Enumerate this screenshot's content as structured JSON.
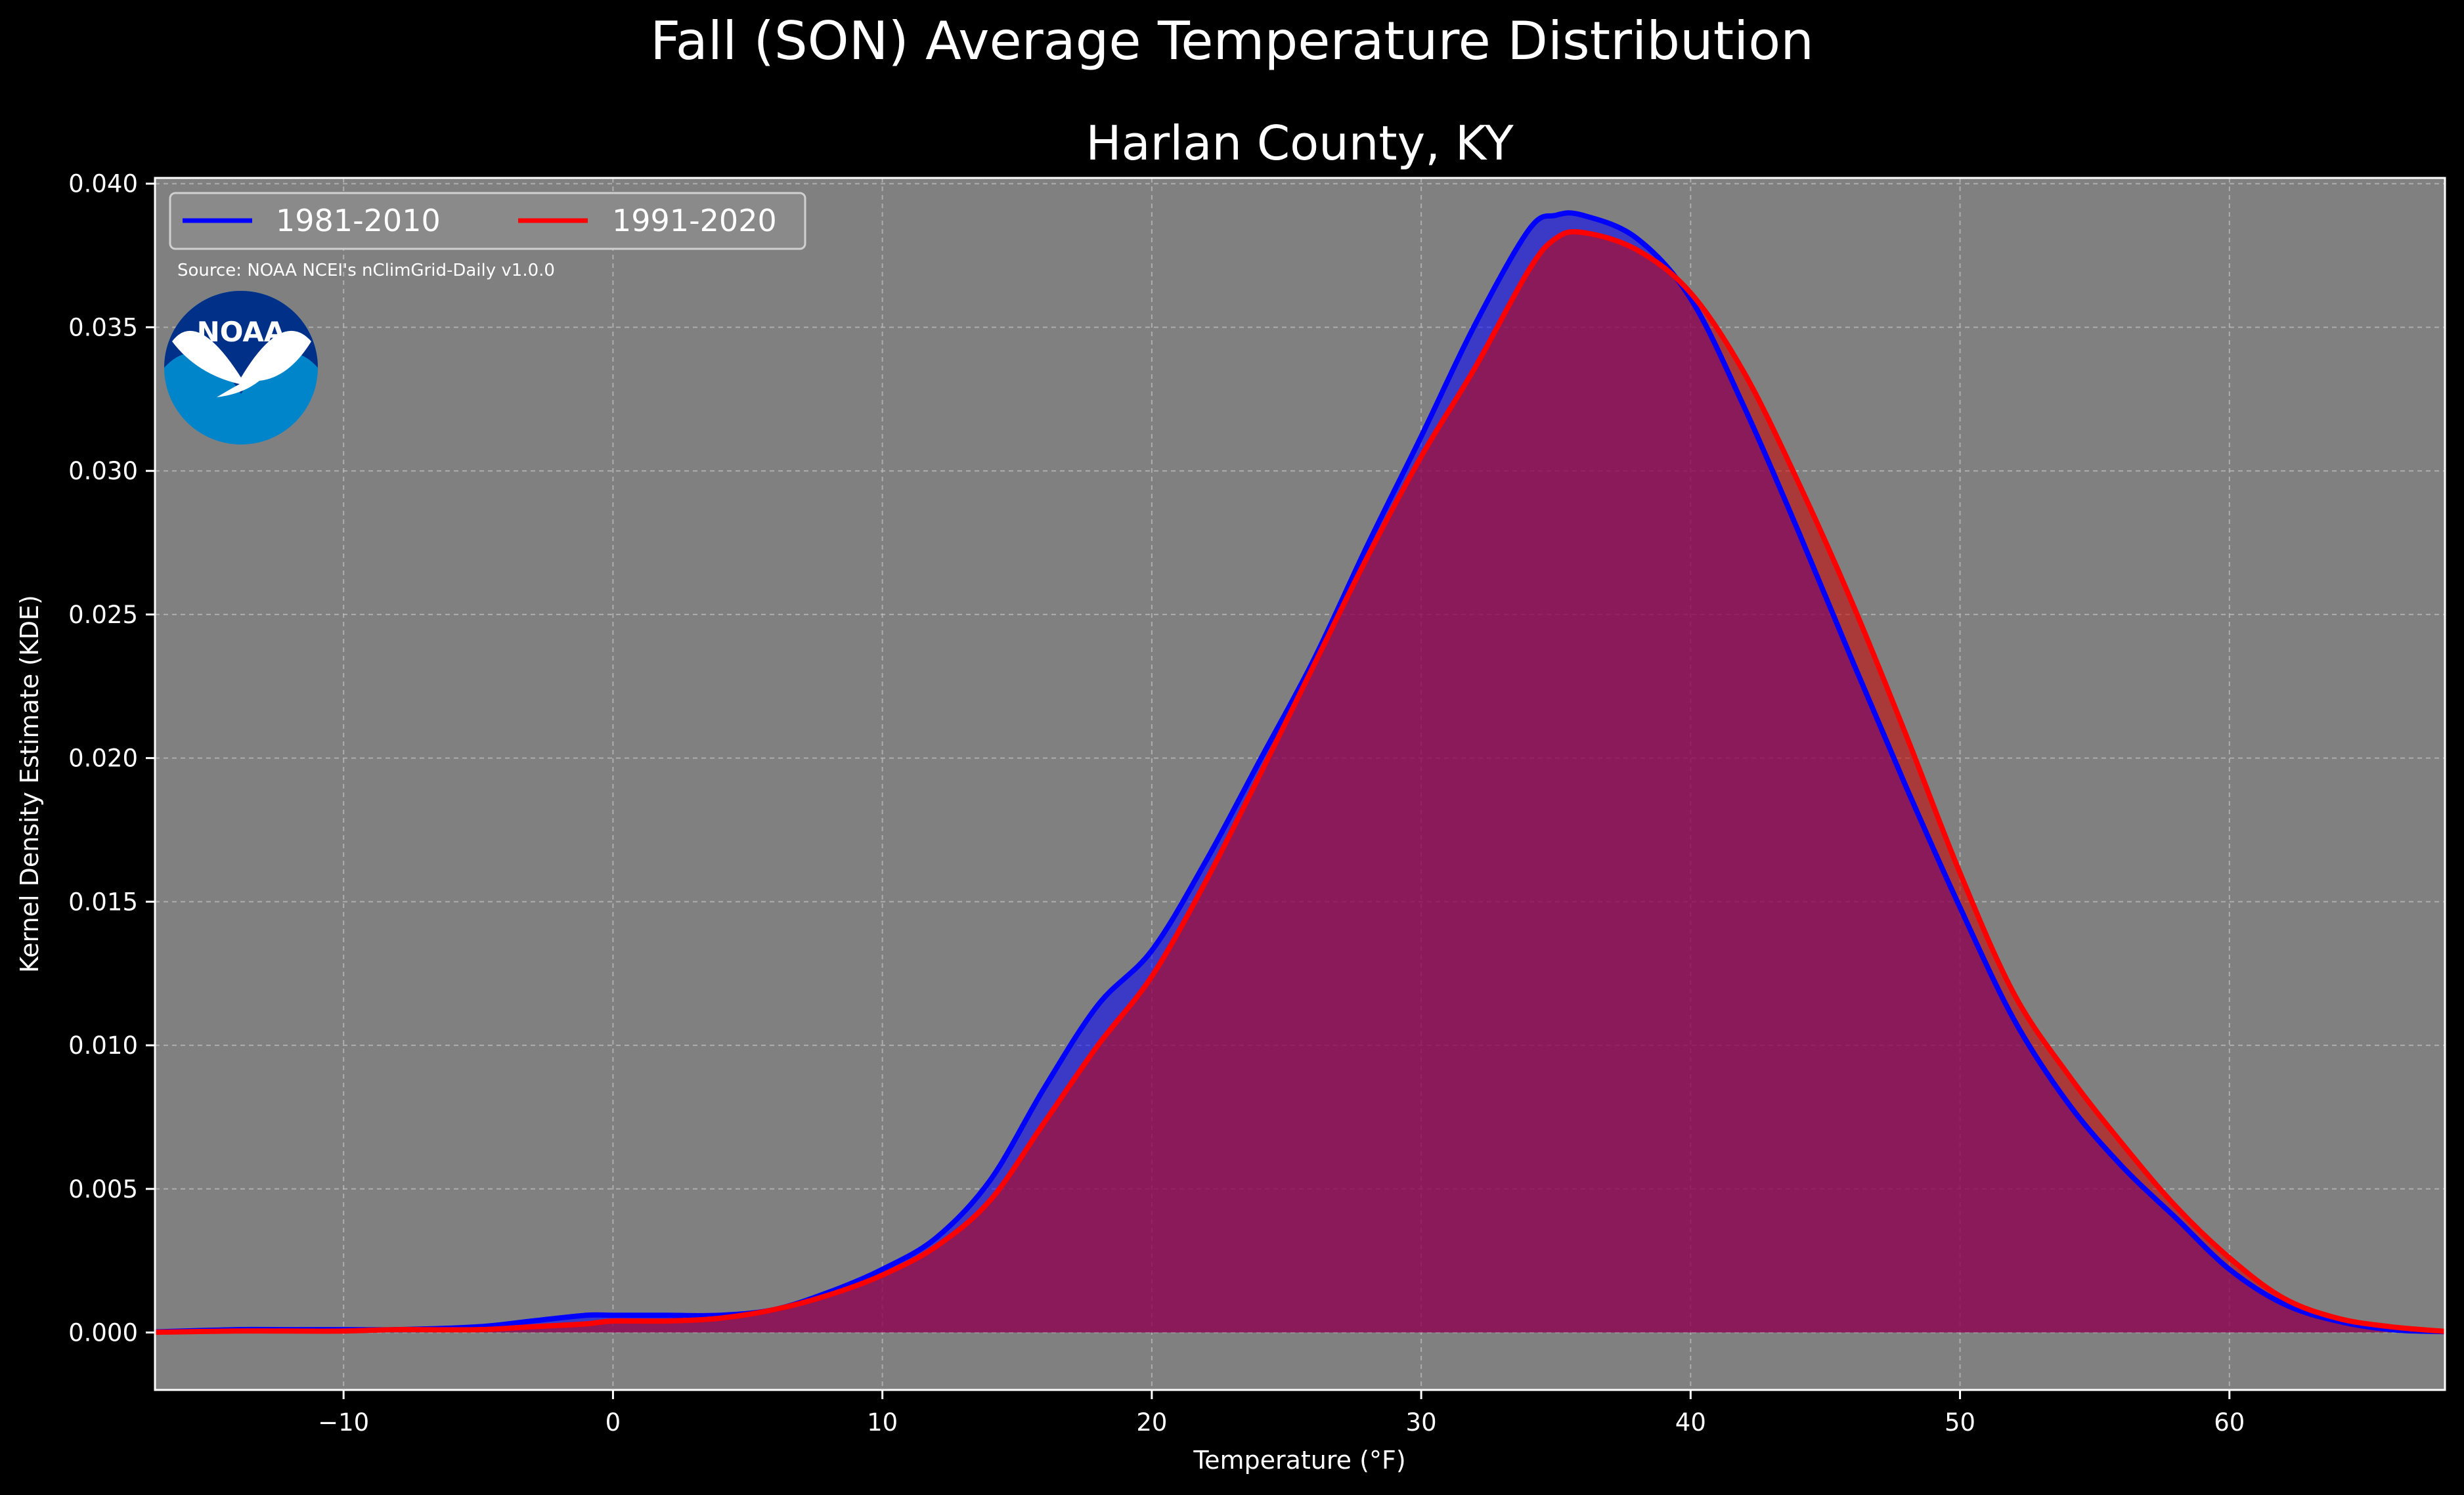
{
  "chart_data": {
    "type": "area",
    "title": "Fall (SON) Average Temperature Distribution",
    "subtitle": "Harlan County, KY",
    "xlabel": "Temperature (°F)",
    "ylabel": "Kernel Density Estimate (KDE)",
    "xlim": [
      -17,
      68
    ],
    "ylim": [
      -0.002,
      0.0402
    ],
    "xticks": [
      -10,
      0,
      10,
      20,
      30,
      40,
      50,
      60
    ],
    "yticks": [
      0.0,
      0.005,
      0.01,
      0.015,
      0.02,
      0.025,
      0.03,
      0.035,
      0.04
    ],
    "xtick_labels": [
      "−10",
      "0",
      "10",
      "20",
      "30",
      "40",
      "50",
      "60"
    ],
    "ytick_labels": [
      "0.000",
      "0.005",
      "0.010",
      "0.015",
      "0.020",
      "0.025",
      "0.030",
      "0.035",
      "0.040"
    ],
    "grid": true,
    "legend_position": "top-left",
    "background_color": "#808080",
    "source": "Source: NOAA NCEI's nClimGrid-Daily v1.0.0",
    "logo_text": "NOAA",
    "series": [
      {
        "name": "1981-2010",
        "color": "#0000ff",
        "fill": "#0000ff",
        "points": [
          [
            -17,
            2e-05
          ],
          [
            -14,
            0.0001
          ],
          [
            -12,
            0.0001
          ],
          [
            -10,
            0.0001
          ],
          [
            -8,
            0.0001
          ],
          [
            -5,
            0.0002
          ],
          [
            -3,
            0.0004
          ],
          [
            -1,
            0.0006
          ],
          [
            0,
            0.0006
          ],
          [
            2,
            0.0006
          ],
          [
            4,
            0.0006
          ],
          [
            6,
            0.0008
          ],
          [
            8,
            0.0014
          ],
          [
            10,
            0.0022
          ],
          [
            12,
            0.0033
          ],
          [
            14,
            0.0053
          ],
          [
            16,
            0.0085
          ],
          [
            18,
            0.0114
          ],
          [
            20,
            0.0133
          ],
          [
            22,
            0.0164
          ],
          [
            24,
            0.0199
          ],
          [
            26,
            0.0234
          ],
          [
            28,
            0.0274
          ],
          [
            30,
            0.0312
          ],
          [
            32,
            0.0351
          ],
          [
            34,
            0.0384
          ],
          [
            35,
            0.0389
          ],
          [
            36,
            0.0389
          ],
          [
            38,
            0.0381
          ],
          [
            40,
            0.036
          ],
          [
            42,
            0.0322
          ],
          [
            44,
            0.0279
          ],
          [
            46,
            0.0234
          ],
          [
            48,
            0.019
          ],
          [
            50,
            0.0148
          ],
          [
            52,
            0.0109
          ],
          [
            54,
            0.008
          ],
          [
            56,
            0.0058
          ],
          [
            58,
            0.004
          ],
          [
            60,
            0.0022
          ],
          [
            62,
            0.001
          ],
          [
            64,
            0.0004
          ],
          [
            66,
            0.0001
          ],
          [
            68,
            3e-05
          ]
        ]
      },
      {
        "name": "1991-2020",
        "color": "#ff0000",
        "fill": "#cc0000",
        "points": [
          [
            -17,
            1e-05
          ],
          [
            -14,
            5e-05
          ],
          [
            -12,
            5e-05
          ],
          [
            -10,
            5e-05
          ],
          [
            -8,
            0.0001
          ],
          [
            -5,
            0.0001
          ],
          [
            -3,
            0.0002
          ],
          [
            -1,
            0.0003
          ],
          [
            0,
            0.0004
          ],
          [
            2,
            0.0004
          ],
          [
            4,
            0.0005
          ],
          [
            6,
            0.0008
          ],
          [
            8,
            0.0013
          ],
          [
            10,
            0.002
          ],
          [
            12,
            0.003
          ],
          [
            14,
            0.0046
          ],
          [
            16,
            0.0073
          ],
          [
            18,
            0.01
          ],
          [
            20,
            0.0124
          ],
          [
            22,
            0.0157
          ],
          [
            24,
            0.0194
          ],
          [
            26,
            0.0232
          ],
          [
            28,
            0.027
          ],
          [
            30,
            0.0305
          ],
          [
            32,
            0.0336
          ],
          [
            34,
            0.037
          ],
          [
            35,
            0.0381
          ],
          [
            36,
            0.0383
          ],
          [
            38,
            0.0377
          ],
          [
            40,
            0.0362
          ],
          [
            42,
            0.0334
          ],
          [
            44,
            0.0296
          ],
          [
            46,
            0.0254
          ],
          [
            48,
            0.0208
          ],
          [
            50,
            0.016
          ],
          [
            52,
            0.0118
          ],
          [
            54,
            0.009
          ],
          [
            56,
            0.0066
          ],
          [
            58,
            0.0044
          ],
          [
            60,
            0.0026
          ],
          [
            62,
            0.0012
          ],
          [
            64,
            0.0005
          ],
          [
            66,
            0.0002
          ],
          [
            68,
            4e-05
          ]
        ]
      }
    ]
  }
}
